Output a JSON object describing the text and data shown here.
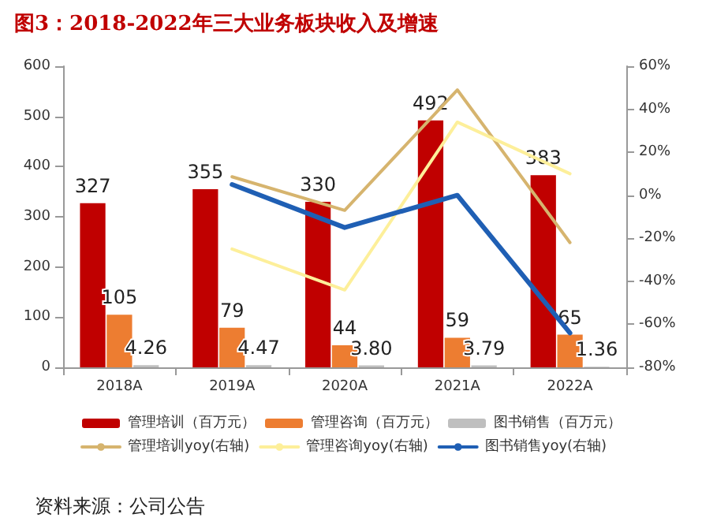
{
  "chart_data": {
    "type": "bar",
    "title": "图3：2018-2022年三大业务板块收入及增速",
    "categories": [
      "2018A",
      "2019A",
      "2020A",
      "2021A",
      "2022A"
    ],
    "series": [
      {
        "name": "管理培训（百万元）",
        "color": "#c00000",
        "values": [
          327,
          355,
          330,
          492,
          383
        ],
        "value_labels": [
          "327",
          "355",
          "330",
          "492",
          "383"
        ]
      },
      {
        "name": "管理咨询（百万元）",
        "color": "#ed7d31",
        "values": [
          105,
          79,
          44,
          59,
          65
        ],
        "value_labels": [
          "105",
          "79",
          "44",
          "59",
          "65"
        ]
      },
      {
        "name": "图书销售（百万元）",
        "color": "#bfbfbf",
        "values": [
          4.26,
          4.47,
          3.8,
          3.79,
          1.36
        ],
        "value_labels": [
          "4.26",
          "4.47",
          "3.80",
          "3.79",
          "1.36"
        ]
      },
      {
        "name": "管理培训yoy(右轴)",
        "type": "line",
        "axis": "y2",
        "color": "#d6b46e",
        "values": [
          null,
          8.6,
          -7,
          49,
          -22
        ]
      },
      {
        "name": "管理咨询yoy(右轴)",
        "type": "line",
        "axis": "y2",
        "color": "#fdef9a",
        "values": [
          null,
          -25,
          -44,
          34,
          10
        ]
      },
      {
        "name": "图书销售yoy(右轴)",
        "type": "line",
        "axis": "y2",
        "color": "#1f5fb4",
        "values": [
          null,
          5,
          -15,
          0,
          -64
        ]
      }
    ],
    "ylim": [
      0,
      600
    ],
    "yticks": [
      0,
      100,
      200,
      300,
      400,
      500,
      600
    ],
    "y2lim": [
      -80,
      60
    ],
    "y2ticks": [
      {
        "value": -80,
        "label": "-80%"
      },
      {
        "value": -60,
        "label": "-60%"
      },
      {
        "value": -40,
        "label": "-40%"
      },
      {
        "value": -20,
        "label": "-20%"
      },
      {
        "value": 0,
        "label": "0%"
      },
      {
        "value": 20,
        "label": "20%"
      },
      {
        "value": 40,
        "label": "40%"
      },
      {
        "value": 60,
        "label": "60%"
      }
    ],
    "grid": false,
    "legend": "bottom",
    "marker": "none",
    "annotations": [
      "资料来源：公司公告"
    ]
  }
}
